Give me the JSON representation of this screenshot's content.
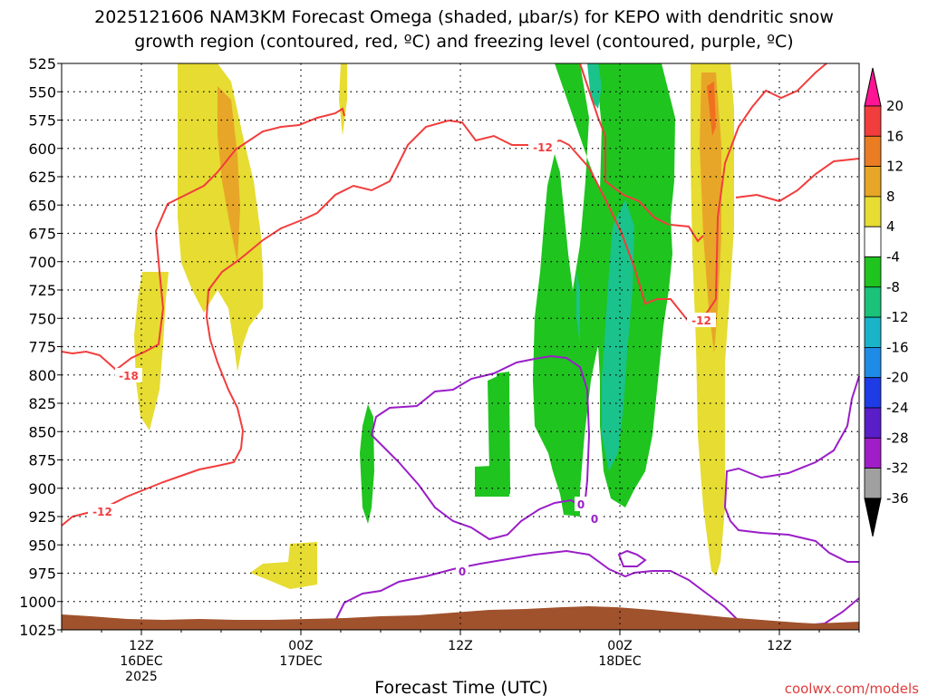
{
  "title_line1": "2025121606 NAM3KM Forecast Omega (shaded, μbar/s) for KEPO with dendritic snow",
  "title_line2": "growth region (contoured, red, ºC) and freezing level (contoured, purple, ºC)",
  "xlabel": "Forecast Time (UTC)",
  "watermark": "coolwx.com/models",
  "chart_data": {
    "type": "heatmap",
    "ylabel": "",
    "y_levels": [
      525,
      550,
      575,
      600,
      625,
      650,
      675,
      700,
      725,
      750,
      775,
      800,
      825,
      850,
      875,
      900,
      925,
      950,
      975,
      1000,
      1025
    ],
    "x_ticks": [
      {
        "l1": "12Z",
        "l2": "16DEC",
        "l3": "2025",
        "h": 12
      },
      {
        "l1": "00Z",
        "l2": "17DEC",
        "l3": "",
        "h": 24
      },
      {
        "l1": "12Z",
        "l2": "",
        "l3": "",
        "h": 36
      },
      {
        "l1": "00Z",
        "l2": "18DEC",
        "l3": "",
        "h": 48
      },
      {
        "l1": "12Z",
        "l2": "",
        "l3": "",
        "h": 60
      }
    ],
    "xlim_hours": [
      6,
      66
    ],
    "ylim_hpa": [
      525,
      1025
    ],
    "grid": true,
    "colorbar": {
      "labels": [
        "20",
        "16",
        "12",
        "8",
        "4",
        "-4",
        "-8",
        "-12",
        "-16",
        "-20",
        "-24",
        "-28",
        "-32",
        "-36"
      ],
      "colors": [
        "#ff1493",
        "#f23d3d",
        "#ea7d24",
        "#e8a628",
        "#e6dc32",
        "#ffffff",
        "#1fc41f",
        "#1ac27a",
        "#1ab4c8",
        "#1e8ce6",
        "#1e3ce6",
        "#5a1ec8",
        "#a01ec8",
        "#a0a0a0",
        "#000000"
      ]
    },
    "contour_labels_red": [
      "-18",
      "-12",
      "-12",
      "-12"
    ],
    "contour_labels_purple": [
      "0",
      "0",
      "0"
    ],
    "terrain_color": "#a0522d",
    "shade_colors": {
      "yellow": "#e6dc32",
      "orange": "#e8a628",
      "green": "#1fc41f",
      "teal": "#1ac28c",
      "red_line": "#f23d3d",
      "purple_line": "#9a1ec8"
    }
  }
}
